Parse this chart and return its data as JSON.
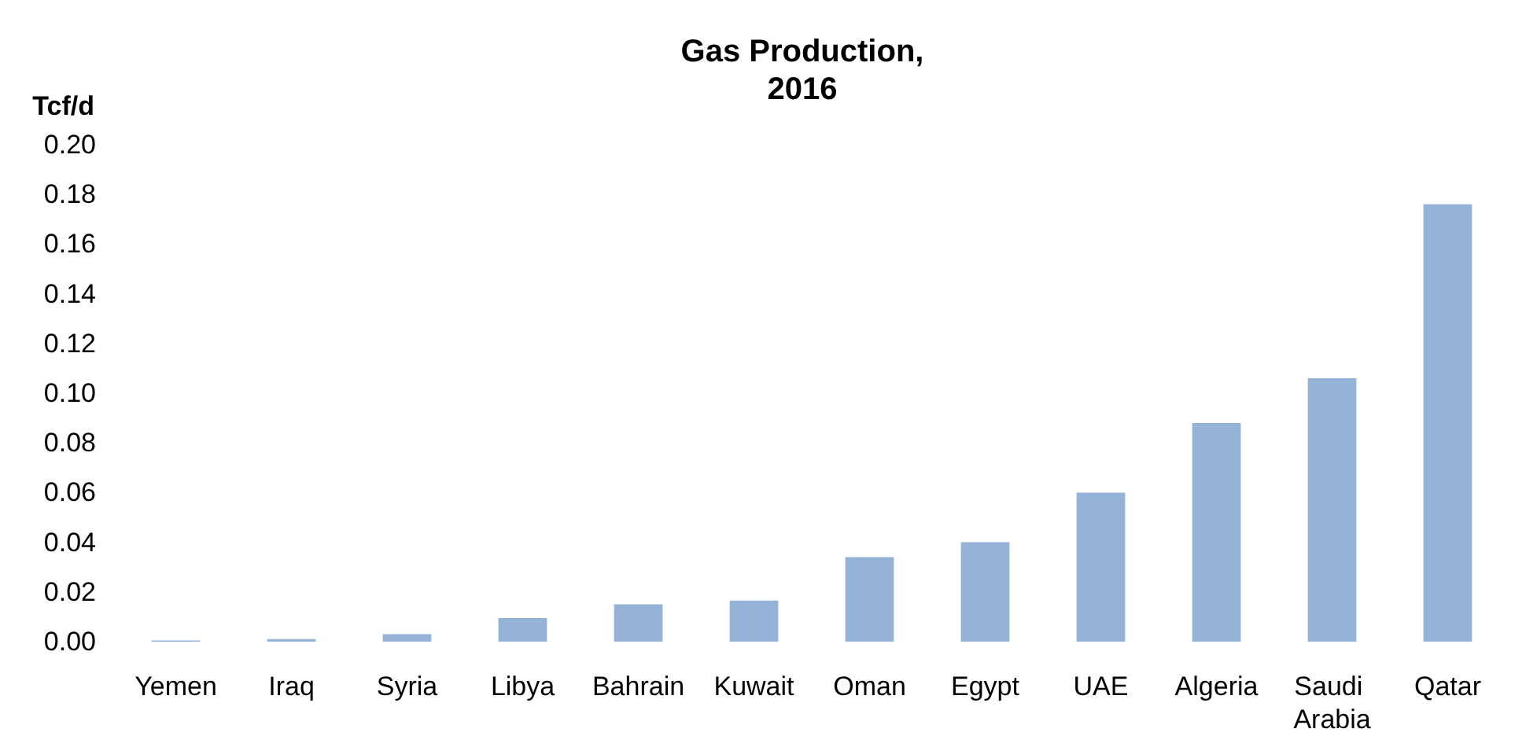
{
  "chart_data": {
    "type": "bar",
    "title": "Gas Production,\n2016",
    "ylabel": "Tcf/d",
    "categories": [
      "Yemen",
      "Iraq",
      "Syria",
      "Libya",
      "Bahrain",
      "Kuwait",
      "Oman",
      "Egypt",
      "UAE",
      "Algeria",
      "Saudi Arabia",
      "Qatar"
    ],
    "values": [
      0.0005,
      0.001,
      0.003,
      0.0095,
      0.015,
      0.0165,
      0.034,
      0.04,
      0.06,
      0.088,
      0.106,
      0.176
    ],
    "color": "#95b3d7",
    "ylim": [
      0,
      0.2
    ],
    "yticks": [
      {
        "value": 0,
        "label": "0.00"
      },
      {
        "value": 0.02,
        "label": "0.02"
      },
      {
        "value": 0.04,
        "label": "0.04"
      },
      {
        "value": 0.06,
        "label": "0.06"
      },
      {
        "value": 0.08,
        "label": "0.08"
      },
      {
        "value": 0.1,
        "label": "0.10"
      },
      {
        "value": 0.12,
        "label": "0.12"
      },
      {
        "value": 0.14,
        "label": "0.14"
      },
      {
        "value": 0.16,
        "label": "0.16"
      },
      {
        "value": 0.18,
        "label": "0.18"
      },
      {
        "value": 0.2,
        "label": "0.20"
      }
    ],
    "grid": false
  }
}
